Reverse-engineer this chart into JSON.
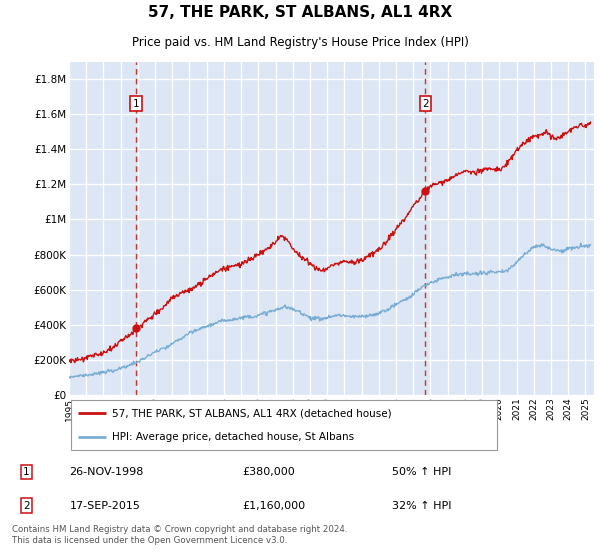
{
  "title": "57, THE PARK, ST ALBANS, AL1 4RX",
  "subtitle": "Price paid vs. HM Land Registry's House Price Index (HPI)",
  "ylabel_ticks": [
    "£0",
    "£200K",
    "£400K",
    "£600K",
    "£800K",
    "£1M",
    "£1.2M",
    "£1.4M",
    "£1.6M",
    "£1.8M"
  ],
  "ytick_values": [
    0,
    200000,
    400000,
    600000,
    800000,
    1000000,
    1200000,
    1400000,
    1600000,
    1800000
  ],
  "ylim": [
    0,
    1900000
  ],
  "xlim_start": 1995.0,
  "xlim_end": 2025.5,
  "sale1_date": 1998.9,
  "sale1_price": 380000,
  "sale1_label": "1",
  "sale1_text": "26-NOV-1998",
  "sale1_amount": "£380,000",
  "sale1_pct": "50% ↑ HPI",
  "sale2_date": 2015.71,
  "sale2_price": 1160000,
  "sale2_label": "2",
  "sale2_text": "17-SEP-2015",
  "sale2_amount": "£1,160,000",
  "sale2_pct": "32% ↑ HPI",
  "legend_line1": "57, THE PARK, ST ALBANS, AL1 4RX (detached house)",
  "legend_line2": "HPI: Average price, detached house, St Albans",
  "footer": "Contains HM Land Registry data © Crown copyright and database right 2024.\nThis data is licensed under the Open Government Licence v3.0.",
  "hpi_color": "#7aadd4",
  "price_color": "#cc1111",
  "background_color": "#dce6f4",
  "grid_color": "#ffffff",
  "dashed_color": "#cc1111"
}
